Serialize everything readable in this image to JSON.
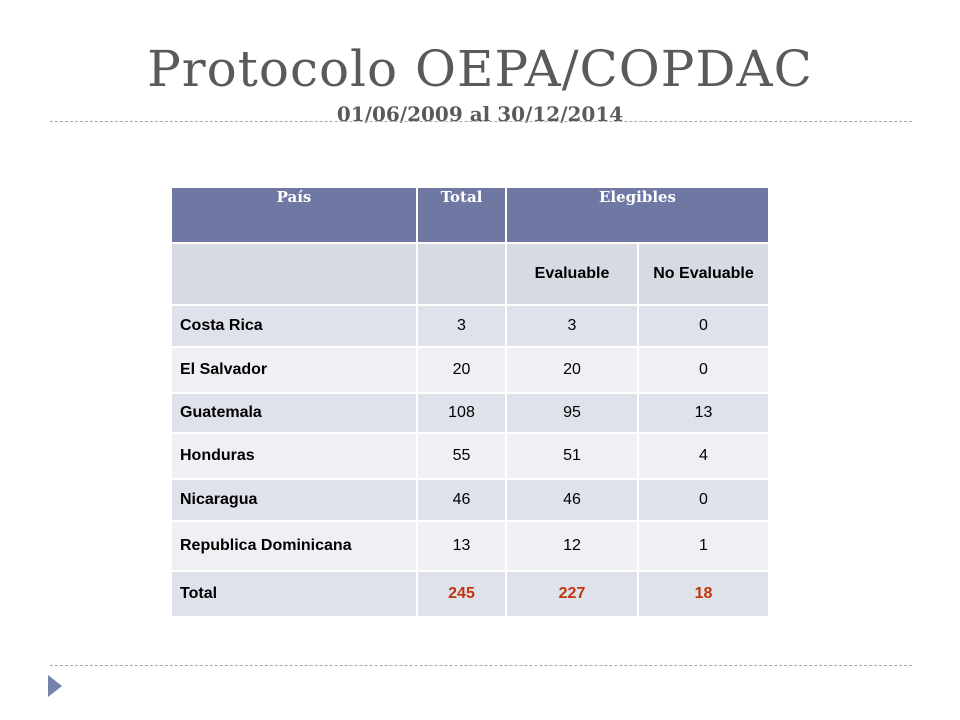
{
  "title": "Protocolo OEPA/COPDAC",
  "subtitle": "01/06/2009 al 30/12/2014",
  "table": {
    "headers": [
      "País",
      "Total",
      "Elegibles"
    ],
    "subheaders": [
      "Evaluable",
      "No Evaluable"
    ],
    "rows": [
      {
        "pais": "Costa Rica",
        "total": "3",
        "evaluable": "3",
        "no_evaluable": "0"
      },
      {
        "pais": "El Salvador",
        "total": "20",
        "evaluable": "20",
        "no_evaluable": "0"
      },
      {
        "pais": "Guatemala",
        "total": "108",
        "evaluable": "95",
        "no_evaluable": "13"
      },
      {
        "pais": "Honduras",
        "total": "55",
        "evaluable": "51",
        "no_evaluable": "4"
      },
      {
        "pais": "Nicaragua",
        "total": "46",
        "evaluable": "46",
        "no_evaluable": "0"
      },
      {
        "pais": "Republica Dominicana",
        "total": "13",
        "evaluable": "12",
        "no_evaluable": "1"
      }
    ],
    "total_row": {
      "pais": "Total",
      "total": "245",
      "evaluable": "227",
      "no_evaluable": "18"
    }
  },
  "colors": {
    "header": "#6f78a3",
    "total_values": "#c0360d",
    "arrow": "#7583aa"
  },
  "icons": {
    "bottom_left": "triangle-arrow-icon"
  }
}
